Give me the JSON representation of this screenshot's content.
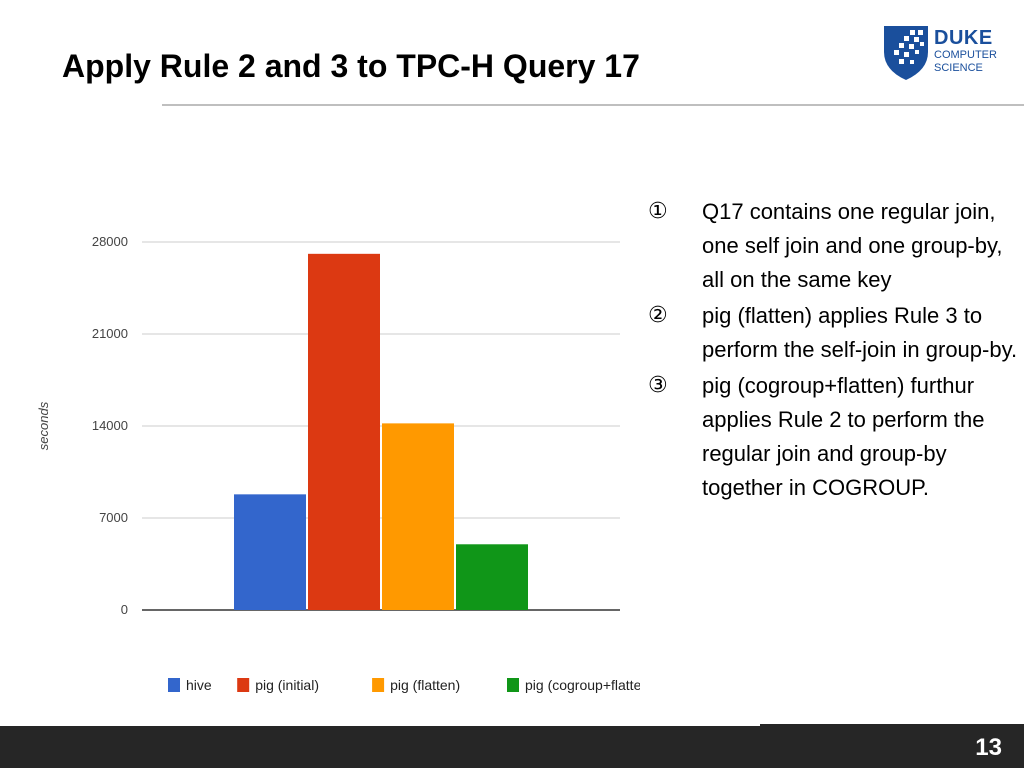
{
  "slide": {
    "title": "Apply Rule 2 and 3 to TPC-H Query 17",
    "page_number": "13"
  },
  "logo": {
    "line1": "DUKE",
    "line2": "COMPUTER",
    "line3": "SCIENCE",
    "color": "#1a4f9c"
  },
  "bullets": [
    {
      "num": "①",
      "text": "Q17 contains one regular join, one self join and one group-by, all on the same key"
    },
    {
      "num": "②",
      "text": "pig (flatten) applies Rule 3 to perform the self-join in group-by."
    },
    {
      "num": "③",
      "text": "pig (cogroup+flatten) furthur applies Rule 2 to perform the regular join and group-by together in COGROUP."
    }
  ],
  "chart_data": {
    "type": "bar",
    "ylabel": "seconds",
    "ylim": [
      0,
      28000
    ],
    "yticks": [
      "28000",
      "21000",
      "14000",
      "7000",
      "0"
    ],
    "grid": true,
    "legend_position": "bottom",
    "series": [
      {
        "name": "hive",
        "value": 8800,
        "color": "#3366cc"
      },
      {
        "name": "pig (initial)",
        "value": 27100,
        "color": "#dc3912"
      },
      {
        "name": "pig (flatten)",
        "value": 14200,
        "color": "#ff9900"
      },
      {
        "name": "pig (cogroup+flatten)",
        "value": 5000,
        "color": "#109618"
      }
    ]
  }
}
